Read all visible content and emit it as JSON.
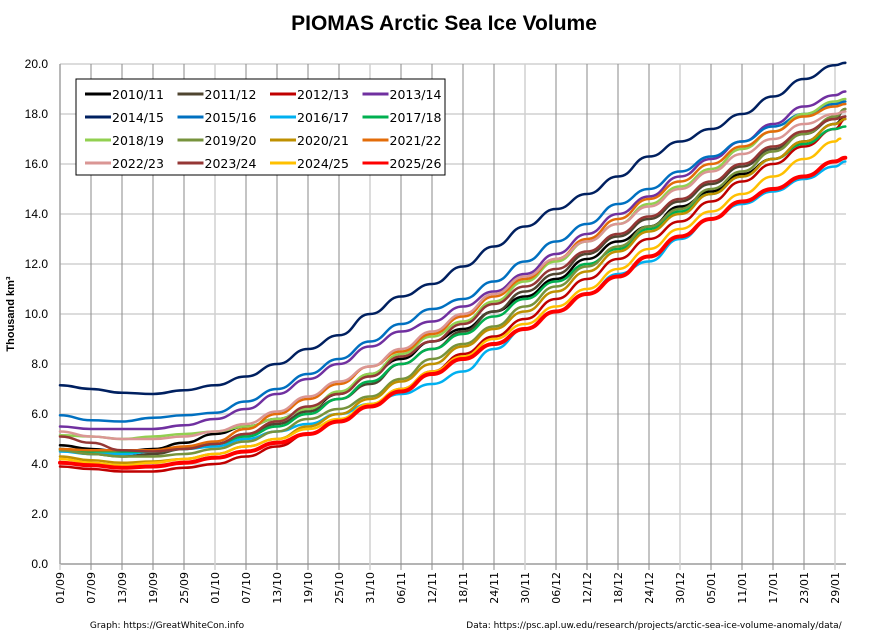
{
  "chart_data": {
    "type": "line",
    "title": "PIOMAS Arctic Sea Ice Volume",
    "ylabel": "Thousand km³",
    "xlabel": "",
    "ylim": [
      0,
      20
    ],
    "yticks": [
      "0.0",
      "2.0",
      "4.0",
      "6.0",
      "8.0",
      "10.0",
      "12.0",
      "14.0",
      "16.0",
      "18.0",
      "20.0"
    ],
    "ytick_values": [
      0,
      2,
      4,
      6,
      8,
      10,
      12,
      14,
      16,
      18,
      20
    ],
    "x_day_range": [
      0,
      152
    ],
    "xticks": [
      "01/09",
      "07/09",
      "13/09",
      "19/09",
      "25/09",
      "01/10",
      "07/10",
      "13/10",
      "19/10",
      "25/10",
      "31/10",
      "06/11",
      "12/11",
      "18/11",
      "24/11",
      "30/11",
      "06/12",
      "12/12",
      "18/12",
      "24/12",
      "30/12",
      "05/01",
      "11/01",
      "17/01",
      "23/01",
      "29/01"
    ],
    "xtick_days": [
      0,
      6,
      12,
      18,
      24,
      30,
      36,
      42,
      48,
      54,
      60,
      66,
      72,
      78,
      84,
      90,
      96,
      102,
      108,
      114,
      120,
      126,
      132,
      138,
      144,
      150
    ],
    "grid": true,
    "legend_position": "top-left",
    "x_days": [
      0,
      6,
      12,
      18,
      24,
      30,
      36,
      42,
      48,
      54,
      60,
      66,
      72,
      78,
      84,
      90,
      96,
      102,
      108,
      114,
      120,
      126,
      132,
      138,
      144,
      150,
      152
    ],
    "series": [
      {
        "name": "2010/11",
        "color": "#000000",
        "width": 2.5,
        "values": [
          4.75,
          4.6,
          4.5,
          4.6,
          4.85,
          5.2,
          5.5,
          5.8,
          6.2,
          6.8,
          7.6,
          8.2,
          8.9,
          9.4,
          10.1,
          10.7,
          11.4,
          12.2,
          12.9,
          13.5,
          14.3,
          14.9,
          15.6,
          16.2,
          16.9,
          17.6,
          17.9
        ]
      },
      {
        "name": "2011/12",
        "color": "#4f4530",
        "width": 2.5,
        "values": [
          4.6,
          4.4,
          4.3,
          4.4,
          4.6,
          4.8,
          5.2,
          5.6,
          6.1,
          6.6,
          7.2,
          8.0,
          8.6,
          9.3,
          10.1,
          10.9,
          11.6,
          12.4,
          13.1,
          13.8,
          14.5,
          15.2,
          15.9,
          16.6,
          17.2,
          17.8,
          18.2
        ]
      },
      {
        "name": "2012/13",
        "color": "#c00000",
        "width": 2.5,
        "values": [
          3.9,
          3.8,
          3.7,
          3.7,
          3.85,
          4.0,
          4.3,
          4.7,
          5.2,
          5.7,
          6.3,
          7.0,
          7.7,
          8.4,
          9.1,
          9.8,
          10.6,
          11.4,
          12.2,
          13.0,
          13.7,
          14.5,
          15.3,
          16.0,
          16.7,
          17.4,
          17.8
        ]
      },
      {
        "name": "2013/14",
        "color": "#7030a0",
        "width": 2.5,
        "values": [
          5.5,
          5.4,
          5.4,
          5.4,
          5.55,
          5.8,
          6.2,
          6.8,
          7.4,
          8.0,
          8.7,
          9.3,
          9.7,
          10.3,
          10.9,
          11.6,
          12.4,
          13.2,
          14.0,
          14.7,
          15.5,
          16.2,
          16.9,
          17.6,
          18.3,
          18.75,
          18.9
        ]
      },
      {
        "name": "2014/15",
        "color": "#002060",
        "width": 2.5,
        "values": [
          7.15,
          7.0,
          6.85,
          6.8,
          6.95,
          7.15,
          7.5,
          8.0,
          8.6,
          9.15,
          10.0,
          10.7,
          11.2,
          11.9,
          12.7,
          13.5,
          14.2,
          14.8,
          15.5,
          16.3,
          16.9,
          17.4,
          18.0,
          18.7,
          19.4,
          19.95,
          20.05
        ]
      },
      {
        "name": "2015/16",
        "color": "#0070c0",
        "width": 2.5,
        "values": [
          5.95,
          5.75,
          5.7,
          5.85,
          5.95,
          6.05,
          6.5,
          7.0,
          7.6,
          8.2,
          8.9,
          9.6,
          10.2,
          10.6,
          11.3,
          12.1,
          12.9,
          13.6,
          14.4,
          15.0,
          15.7,
          16.3,
          16.9,
          17.5,
          18.0,
          18.4,
          18.5
        ]
      },
      {
        "name": "2016/17",
        "color": "#00b0f0",
        "width": 2.5,
        "values": [
          4.5,
          4.4,
          4.4,
          4.5,
          4.6,
          4.7,
          5.0,
          5.3,
          5.6,
          6.0,
          6.4,
          6.8,
          7.2,
          7.7,
          8.6,
          9.4,
          10.1,
          10.8,
          11.6,
          12.1,
          13.0,
          13.8,
          14.4,
          14.9,
          15.4,
          15.9,
          16.1
        ]
      },
      {
        "name": "2017/18",
        "color": "#00b050",
        "width": 2.5,
        "values": [
          4.6,
          4.5,
          4.5,
          4.5,
          4.6,
          4.8,
          5.1,
          5.5,
          6.0,
          6.6,
          7.3,
          8.0,
          8.6,
          9.2,
          9.9,
          10.6,
          11.3,
          12.0,
          12.6,
          13.4,
          14.1,
          14.8,
          15.5,
          16.2,
          16.8,
          17.4,
          17.5
        ]
      },
      {
        "name": "2018/19",
        "color": "#92d050",
        "width": 2.5,
        "values": [
          5.15,
          5.1,
          5.0,
          5.1,
          5.2,
          5.3,
          5.5,
          5.8,
          6.2,
          6.9,
          7.6,
          8.4,
          9.1,
          9.7,
          10.5,
          11.3,
          12.1,
          12.9,
          13.6,
          14.4,
          15.1,
          15.8,
          16.6,
          17.3,
          18.0,
          18.5,
          18.6
        ]
      },
      {
        "name": "2019/20",
        "color": "#77933c",
        "width": 2.5,
        "values": [
          4.55,
          4.4,
          4.3,
          4.3,
          4.4,
          4.6,
          4.9,
          5.3,
          5.8,
          6.2,
          6.7,
          7.4,
          8.2,
          8.8,
          9.5,
          10.3,
          11.1,
          11.9,
          12.7,
          13.5,
          14.2,
          15.0,
          15.7,
          16.5,
          17.2,
          17.9,
          18.2
        ]
      },
      {
        "name": "2020/21",
        "color": "#bf9000",
        "width": 2.5,
        "values": [
          4.3,
          4.15,
          4.05,
          4.1,
          4.2,
          4.4,
          4.7,
          5.0,
          5.5,
          6.0,
          6.6,
          7.3,
          8.0,
          8.7,
          9.4,
          10.1,
          10.9,
          11.7,
          12.5,
          13.3,
          14.0,
          14.8,
          15.5,
          16.2,
          16.9,
          17.6,
          17.8
        ]
      },
      {
        "name": "2021/22",
        "color": "#e36c09",
        "width": 2.5,
        "values": [
          4.6,
          4.55,
          4.55,
          4.55,
          4.7,
          4.9,
          5.4,
          6.0,
          6.6,
          7.2,
          7.9,
          8.5,
          9.2,
          9.9,
          10.7,
          11.4,
          12.2,
          13.0,
          13.8,
          14.6,
          15.3,
          16.0,
          16.7,
          17.3,
          17.9,
          18.3,
          18.4
        ]
      },
      {
        "name": "2022/23",
        "color": "#da9694",
        "width": 2.5,
        "values": [
          5.3,
          5.1,
          5.0,
          5.0,
          5.1,
          5.3,
          5.6,
          6.1,
          6.7,
          7.3,
          7.9,
          8.6,
          9.3,
          10.0,
          10.8,
          11.5,
          12.2,
          12.9,
          13.6,
          14.3,
          15.0,
          15.7,
          16.4,
          17.0,
          17.6,
          18.0,
          18.1
        ]
      },
      {
        "name": "2023/24",
        "color": "#953735",
        "width": 2.5,
        "values": [
          5.1,
          4.85,
          4.55,
          4.5,
          4.6,
          4.8,
          5.2,
          5.7,
          6.3,
          6.8,
          7.5,
          8.3,
          8.9,
          9.6,
          10.4,
          11.1,
          11.8,
          12.5,
          13.2,
          13.9,
          14.6,
          15.3,
          16.0,
          16.7,
          17.3,
          17.8,
          17.9
        ]
      },
      {
        "name": "2024/25",
        "color": "#ffc000",
        "width": 2.5,
        "values": [
          4.2,
          4.05,
          3.95,
          4.05,
          4.2,
          4.4,
          4.7,
          5.0,
          5.4,
          5.8,
          6.4,
          7.0,
          7.7,
          8.3,
          9.0,
          9.6,
          10.3,
          11.0,
          11.8,
          12.6,
          13.4,
          14.1,
          14.8,
          15.5,
          16.2,
          16.9,
          null
        ]
      },
      {
        "name": "2025/26",
        "color": "#ff0000",
        "width": 4,
        "values": [
          4.05,
          3.95,
          3.85,
          3.9,
          4.05,
          4.25,
          4.5,
          4.85,
          5.2,
          5.7,
          6.3,
          6.9,
          7.6,
          8.2,
          8.8,
          9.4,
          10.1,
          10.8,
          11.5,
          12.3,
          13.1,
          13.8,
          14.5,
          15.0,
          15.5,
          16.1,
          16.25
        ]
      }
    ]
  },
  "footer": {
    "graph_credit": "Graph: https://GreatWhiteCon.info",
    "data_credit": "Data: https://psc.apl.uw.edu/research/projects/arctic-sea-ice-volume-anomaly/data/"
  }
}
